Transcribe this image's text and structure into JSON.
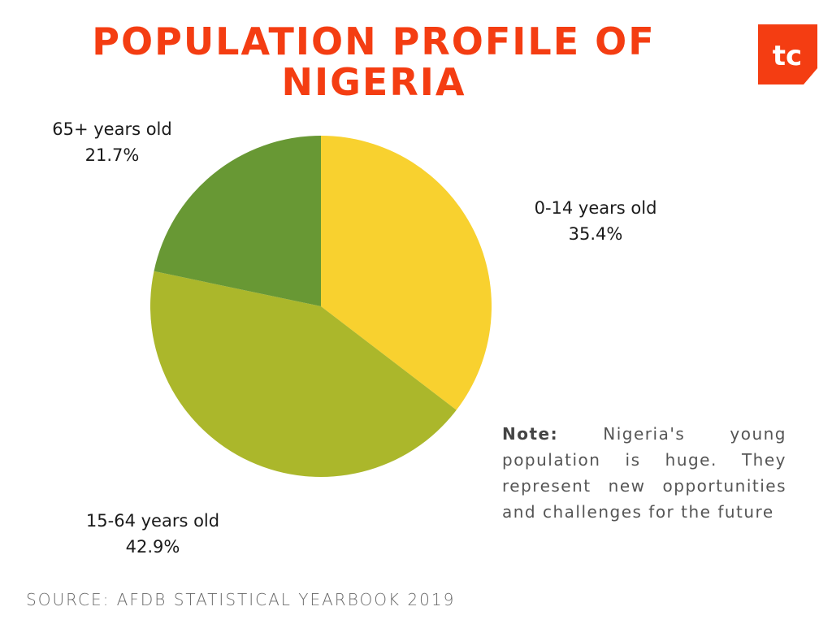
{
  "title": "POPULATION PROFILE OF NIGERIA",
  "logo_text": "tc",
  "colors": {
    "accent": "#f43d12",
    "slice_0_14": "#f8d12f",
    "slice_15_64": "#abb72b",
    "slice_65_plus": "#689834"
  },
  "chart_data": {
    "type": "pie",
    "slices": [
      {
        "label": "0-14 years old",
        "value": 35.4,
        "display": "35.4%",
        "color": "#f8d12f"
      },
      {
        "label": "15-64 years old",
        "value": 42.9,
        "display": "42.9%",
        "color": "#abb72b"
      },
      {
        "label": "65+ years old",
        "value": 21.7,
        "display": "21.7%",
        "color": "#689834"
      }
    ],
    "start_angle": "12 o'clock",
    "direction": "clockwise",
    "legend": "none"
  },
  "note": {
    "label": "Note:",
    "text": "Nigeria's young population is huge. They represent new opportunities and challenges for the future"
  },
  "source": "SOURCE: AFDB STATISTICAL YEARBOOK 2019"
}
